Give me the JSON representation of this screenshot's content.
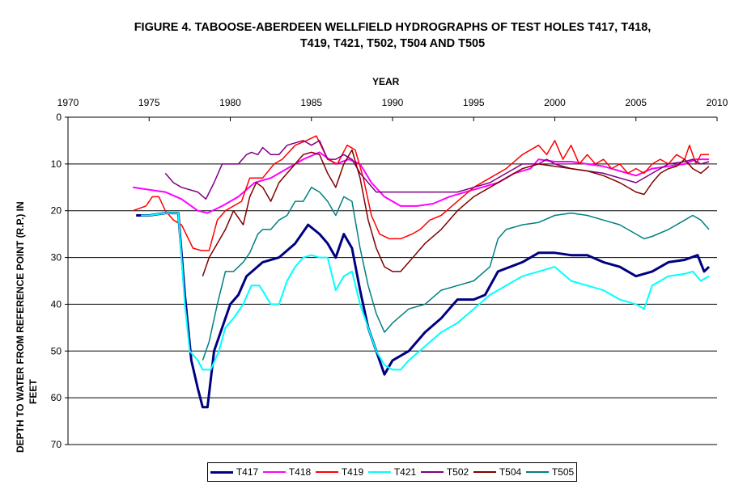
{
  "title_lines": [
    "FIGURE 4. TABOOSE-ABERDEEN WELLFIELD HYDROGRAPHS OF TEST HOLES T417, T418,",
    "T419, T421, T502, T504  AND T505"
  ],
  "chart_data": {
    "type": "line",
    "xlabel": "YEAR",
    "ylabel_lines": [
      "DEPTH TO WATER FROM REFERENCE POINT (R.P.) IN",
      "FEET"
    ],
    "xlim": [
      1970,
      2010
    ],
    "ylim": [
      0,
      70
    ],
    "y_inverted": true,
    "x_axis_position": "top",
    "xticks": [
      1970,
      1975,
      1980,
      1985,
      1990,
      1995,
      2000,
      2005,
      2010
    ],
    "yticks": [
      0,
      10,
      20,
      30,
      40,
      50,
      60,
      70
    ],
    "grid": "horizontal",
    "legend_position": "bottom",
    "series": [
      {
        "name": "T417",
        "color": "#000080",
        "width": 3,
        "x": [
          1974.2,
          1975,
          1976,
          1976.8,
          1977.2,
          1977.6,
          1978,
          1978.3,
          1978.6,
          1979,
          1979.5,
          1980,
          1980.5,
          1981,
          1982,
          1983,
          1984,
          1984.8,
          1985.5,
          1986,
          1986.5,
          1987,
          1987.5,
          1988,
          1988.5,
          1989,
          1989.5,
          1990,
          1991,
          1992,
          1993,
          1994,
          1995,
          1995.7,
          1996.5,
          1998,
          1999,
          2000,
          2001,
          2002,
          2003,
          2004,
          2005,
          2006,
          2007,
          2008,
          2008.8,
          2009.2,
          2009.5
        ],
        "y": [
          21,
          21,
          20.5,
          20.5,
          38,
          52,
          58,
          62,
          62,
          50,
          45,
          40,
          38,
          34,
          31,
          30,
          27,
          23,
          25,
          27,
          30,
          25,
          28,
          37,
          45,
          50,
          55,
          52,
          50,
          46,
          43,
          39,
          39,
          38,
          33,
          31,
          29,
          29,
          29.5,
          29.5,
          31,
          32,
          34,
          33,
          31,
          30.5,
          29.5,
          33,
          32
        ]
      },
      {
        "name": "T418",
        "color": "#FF00FF",
        "width": 2,
        "x": [
          1974,
          1975,
          1976,
          1977,
          1978,
          1978.6,
          1979.5,
          1980.5,
          1981.5,
          1982.5,
          1983.5,
          1984.5,
          1985.5,
          1986.5,
          1987.3,
          1988,
          1988.7,
          1989.5,
          1990.5,
          1991.5,
          1992.5,
          1993.5,
          1994.5,
          1995.5,
          1996.5,
          1997.5,
          1998.5,
          1999,
          2000,
          2001,
          2002,
          2003,
          2004,
          2005,
          2006,
          2007,
          2008,
          2008.7,
          2009.5
        ],
        "y": [
          15,
          15.5,
          16,
          17.5,
          20,
          20.5,
          19,
          17,
          14,
          13,
          11,
          9,
          7.5,
          10,
          9,
          10,
          14,
          17,
          19,
          19,
          18.5,
          17,
          16,
          15,
          14,
          12,
          11,
          9,
          9.5,
          9.5,
          10,
          10.5,
          11.5,
          12.5,
          11,
          10.5,
          10,
          9,
          9
        ]
      },
      {
        "name": "T419",
        "color": "#FF0000",
        "width": 1.5,
        "x": [
          1974,
          1974.8,
          1975.2,
          1975.6,
          1976,
          1976.5,
          1977,
          1977.7,
          1978.2,
          1978.7,
          1979.2,
          1979.7,
          1980.2,
          1980.7,
          1981.2,
          1982,
          1982.7,
          1983.2,
          1984,
          1984.7,
          1985.3,
          1986,
          1986.6,
          1987.2,
          1987.7,
          1988.2,
          1988.7,
          1989.2,
          1989.8,
          1990.5,
          1991.2,
          1991.7,
          1992.3,
          1993,
          1994,
          1995,
          1996,
          1997,
          1998,
          1999,
          1999.5,
          2000,
          2000.5,
          2001,
          2001.5,
          2002,
          2002.5,
          2003,
          2003.5,
          2004,
          2004.5,
          2005,
          2005.5,
          2006,
          2006.5,
          2007,
          2007.5,
          2008,
          2008.3,
          2008.7,
          2009,
          2009.5
        ],
        "y": [
          20,
          19,
          17,
          17,
          20,
          22,
          23,
          28,
          28.5,
          28.5,
          22,
          20,
          19,
          18,
          13,
          13,
          10,
          9,
          6,
          5,
          4,
          9,
          10,
          6,
          7,
          13,
          21,
          25,
          26,
          26,
          25,
          24,
          22,
          21,
          18,
          15,
          13,
          11,
          8,
          6,
          8,
          5,
          9,
          6,
          10,
          8,
          10,
          9,
          11,
          10,
          12,
          11,
          12,
          10,
          9,
          10,
          8,
          9,
          6,
          10,
          8,
          8
        ]
      },
      {
        "name": "T421",
        "color": "#00FFFF",
        "width": 2,
        "x": [
          1974.5,
          1975,
          1976,
          1976.8,
          1977.2,
          1977.5,
          1978,
          1978.3,
          1978.8,
          1979.3,
          1979.7,
          1980.2,
          1980.8,
          1981.3,
          1981.8,
          1982.5,
          1983,
          1983.5,
          1984,
          1984.5,
          1985,
          1985.5,
          1986,
          1986.5,
          1987,
          1987.5,
          1988,
          1988.5,
          1989,
          1989.5,
          1990,
          1990.5,
          1991,
          1992,
          1993,
          1994,
          1995,
          1996,
          1997,
          1998,
          1999,
          2000,
          2001,
          2002,
          2003,
          2004,
          2005,
          2005.5,
          2006,
          2007,
          2008,
          2008.5,
          2009,
          2009.5
        ],
        "y": [
          21,
          21,
          20.5,
          20.5,
          40,
          50,
          52,
          54,
          54,
          50,
          45,
          43,
          40,
          36,
          36,
          40,
          40,
          35,
          32,
          30,
          29.5,
          30,
          30,
          37,
          34,
          33,
          40,
          45,
          50,
          53,
          54,
          54,
          52,
          49,
          46,
          44,
          41,
          38,
          36,
          34,
          33,
          32,
          35,
          36,
          37,
          39,
          40,
          41,
          36,
          34,
          33.5,
          33,
          35,
          34
        ]
      },
      {
        "name": "T502",
        "color": "#800080",
        "width": 1.5,
        "x": [
          1976,
          1976.5,
          1977,
          1978,
          1978.5,
          1979,
          1979.5,
          1980,
          1980.5,
          1981,
          1981.3,
          1981.7,
          1982,
          1982.5,
          1983,
          1983.5,
          1984,
          1984.5,
          1985,
          1985.5,
          1986,
          1986.5,
          1987,
          1987.5,
          1988,
          1988.5,
          1989,
          1989.5,
          1990,
          1991,
          1992,
          1993,
          1994,
          1995,
          1996,
          1997,
          1998,
          1999,
          1999.5,
          2000,
          2001,
          2002,
          2003,
          2004,
          2005,
          2006,
          2007,
          2008,
          2008.5,
          2009,
          2009.5
        ],
        "y": [
          12,
          14,
          15,
          16,
          17.5,
          14,
          10,
          10,
          10,
          8,
          7.5,
          8,
          6.5,
          8,
          8,
          6,
          5.5,
          5,
          6,
          5,
          9,
          9,
          8,
          9,
          12,
          14,
          16,
          16,
          16,
          16,
          16,
          16,
          16,
          15,
          14,
          12,
          10,
          10,
          9,
          10,
          11,
          11.5,
          12,
          13,
          14,
          12,
          10,
          9.5,
          9,
          10,
          9.5
        ]
      },
      {
        "name": "T504",
        "color": "#800000",
        "width": 1.5,
        "x": [
          1978.3,
          1978.7,
          1979.2,
          1979.7,
          1980.2,
          1980.8,
          1981.2,
          1981.6,
          1982,
          1982.5,
          1983,
          1983.5,
          1984,
          1984.5,
          1985,
          1985.5,
          1986,
          1986.5,
          1987,
          1987.5,
          1988,
          1988.5,
          1989,
          1989.5,
          1990,
          1990.5,
          1991,
          1992,
          1993,
          1994,
          1995,
          1996,
          1997,
          1998,
          1999,
          2000,
          2001,
          2002,
          2003,
          2004,
          2005,
          2005.5,
          2006,
          2006.5,
          2007,
          2007.5,
          2008,
          2008.5,
          2009,
          2009.5
        ],
        "y": [
          34,
          30,
          27,
          24,
          20,
          23,
          17,
          14,
          15,
          18,
          14,
          12,
          10,
          8,
          7.5,
          8,
          12,
          15,
          10,
          7,
          13,
          22,
          28,
          32,
          33,
          33,
          31,
          27,
          24,
          20,
          17,
          15,
          13,
          11,
          10,
          10.5,
          11,
          11.5,
          12.5,
          14,
          16,
          16.5,
          14,
          12,
          11,
          10.5,
          9,
          11,
          12,
          10.5
        ]
      },
      {
        "name": "T505",
        "color": "#008080",
        "width": 1.5,
        "x": [
          1978.3,
          1978.7,
          1979.2,
          1979.7,
          1980.2,
          1980.8,
          1981.2,
          1981.7,
          1982,
          1982.5,
          1983,
          1983.5,
          1984,
          1984.5,
          1985,
          1985.5,
          1986,
          1986.5,
          1987,
          1987.5,
          1988,
          1988.5,
          1989,
          1989.5,
          1990,
          1991,
          1992,
          1993,
          1994,
          1995,
          1996,
          1996.5,
          1997,
          1998,
          1999,
          2000,
          2001,
          2002,
          2003,
          2004,
          2005,
          2005.5,
          2006,
          2007,
          2008,
          2008.5,
          2009,
          2009.5
        ],
        "y": [
          52,
          48,
          40,
          33,
          33,
          31,
          29,
          25,
          24,
          24,
          22,
          21,
          18,
          18,
          15,
          16,
          18,
          21,
          17,
          18,
          28,
          36,
          42,
          46,
          44,
          41,
          40,
          37,
          36,
          35,
          32,
          26,
          24,
          23,
          22.5,
          21,
          20.5,
          21,
          22,
          23,
          25,
          26,
          25.5,
          24,
          22,
          21,
          22,
          24
        ]
      }
    ]
  }
}
